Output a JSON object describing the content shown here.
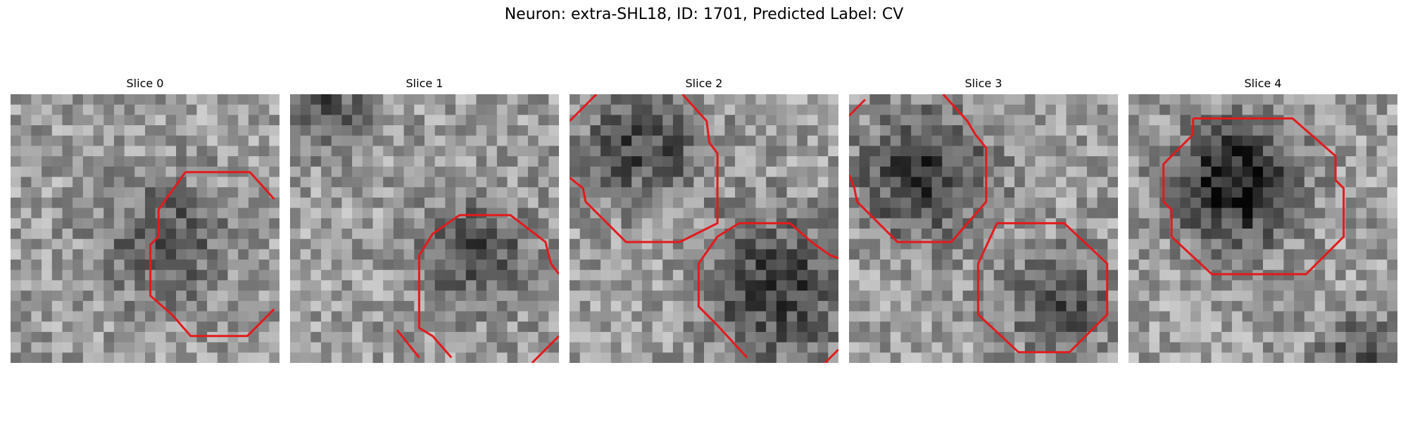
{
  "figure": {
    "title": "Neuron: extra-SHL18, ID: 1701, Predicted Label: CV"
  },
  "slices": [
    {
      "title": "Slice 0"
    },
    {
      "title": "Slice 1"
    },
    {
      "title": "Slice 2"
    },
    {
      "title": "Slice 3"
    },
    {
      "title": "Slice 4"
    }
  ],
  "contour_color": "#e31a1c"
}
